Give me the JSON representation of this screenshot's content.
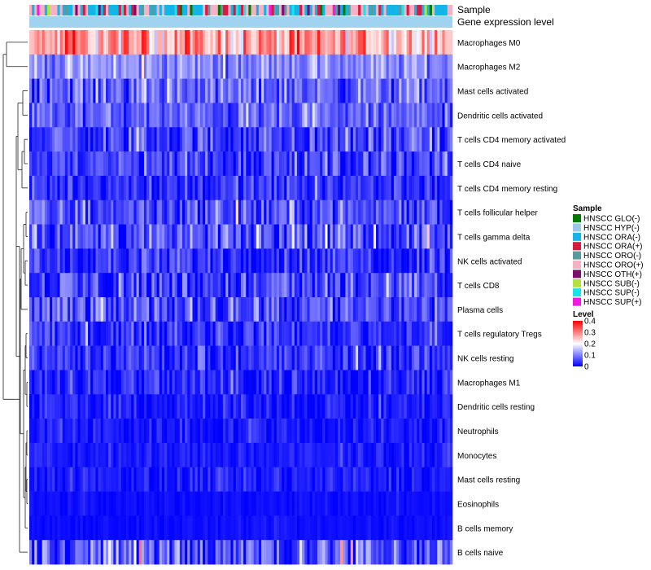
{
  "chart_data": {
    "type": "heatmap",
    "title": "",
    "annotation_tracks": [
      "Sample",
      "Gene expression level"
    ],
    "rows": [
      "Macrophages M0",
      "Macrophages M2",
      "Mast cells activated",
      "Dendritic cells activated",
      "T cells CD4 memory activated",
      "T cells CD4 naive",
      "T cells CD4 memory resting",
      "T cells follicular helper",
      "T cells gamma delta",
      "NK cells activated",
      "T cells CD8",
      "Plasma cells",
      "T cells regulatory  Tregs",
      "NK cells resting",
      "Macrophages M1",
      "Dendritic cells resting",
      "Neutrophils",
      "Monocytes",
      "Mast cells resting",
      "Eosinophils",
      "B cells memory",
      "B cells naive"
    ],
    "row_mean_level": [
      0.27,
      0.11,
      0.08,
      0.07,
      0.05,
      0.05,
      0.04,
      0.06,
      0.06,
      0.04,
      0.05,
      0.06,
      0.04,
      0.04,
      0.03,
      0.02,
      0.02,
      0.02,
      0.02,
      0.01,
      0.01,
      0.07
    ],
    "row_variability": [
      0.08,
      0.05,
      0.06,
      0.05,
      0.06,
      0.06,
      0.05,
      0.06,
      0.06,
      0.05,
      0.07,
      0.07,
      0.04,
      0.05,
      0.05,
      0.03,
      0.03,
      0.02,
      0.03,
      0.01,
      0.01,
      0.09
    ],
    "n_samples": 166,
    "level_range": [
      0,
      0.4
    ],
    "legend_sample": {
      "title": "Sample",
      "entries": [
        {
          "label": "HNSCC GLO(-)",
          "color": "#007b00"
        },
        {
          "label": "HNSCC HYP(-)",
          "color": "#9dc7e8"
        },
        {
          "label": "HNSCC ORA(-)",
          "color": "#14b4e6"
        },
        {
          "label": "HNSCC ORA(+)",
          "color": "#d81b3f"
        },
        {
          "label": "HNSCC ORO(-)",
          "color": "#5a9a9e"
        },
        {
          "label": "HNSCC ORO(+)",
          "color": "#f4b2c4"
        },
        {
          "label": "HNSCC OTH(+)",
          "color": "#7a0f6e"
        },
        {
          "label": "HNSCC SUB(-)",
          "color": "#b3e23a"
        },
        {
          "label": "HNSCC SUP(-)",
          "color": "#17e3e8"
        },
        {
          "label": "HNSCC SUP(+)",
          "color": "#f01ae0"
        }
      ]
    },
    "legend_level": {
      "title": "Level",
      "ticks": [
        "0.4",
        "0.3",
        "0.2",
        "0.1",
        "0"
      ],
      "tick_values": [
        0.4,
        0.3,
        0.2,
        0.1,
        0
      ],
      "colors": {
        "low": "#0000ff",
        "mid": "#ffffff",
        "high": "#ff0000"
      }
    },
    "gene_expression_bar_color": "#9fd3f0"
  }
}
